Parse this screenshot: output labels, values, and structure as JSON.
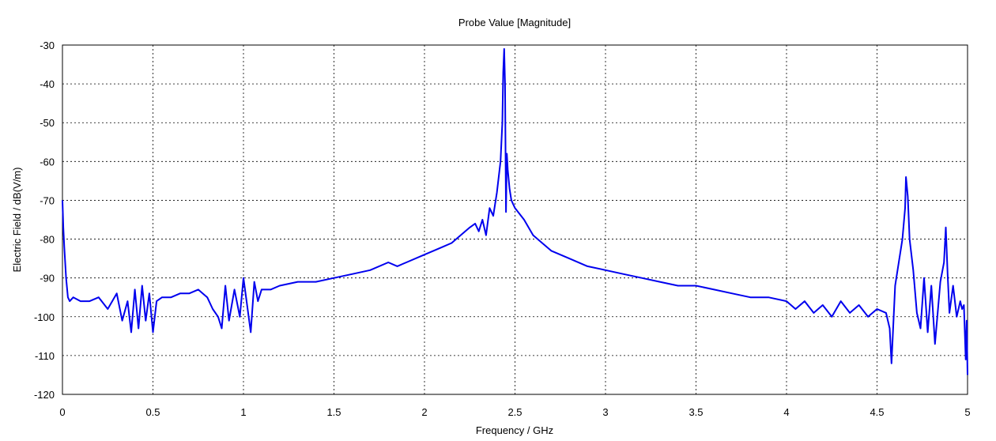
{
  "chart_data": {
    "type": "line",
    "title": "Probe Value [Magnitude]",
    "xlabel": "Frequency / GHz",
    "ylabel": "Electric Field / dB(V/m)",
    "xlim": [
      0,
      5
    ],
    "ylim": [
      -120,
      -30
    ],
    "xticks": [
      0,
      0.5,
      1,
      1.5,
      2,
      2.5,
      3,
      3.5,
      4,
      4.5,
      5
    ],
    "yticks": [
      -30,
      -40,
      -50,
      -60,
      -70,
      -80,
      -90,
      -100,
      -110,
      -120
    ],
    "grid": true,
    "legend": "none",
    "line_color": "#0000ee",
    "series": [
      {
        "x": [
          0,
          0.005,
          0.01,
          0.02,
          0.03,
          0.04,
          0.06,
          0.1,
          0.15,
          0.2,
          0.25,
          0.3,
          0.33,
          0.36,
          0.38,
          0.4,
          0.42,
          0.44,
          0.46,
          0.48,
          0.5,
          0.52,
          0.55,
          0.6,
          0.65,
          0.7,
          0.75,
          0.8,
          0.83,
          0.86,
          0.88,
          0.9,
          0.92,
          0.95,
          0.98,
          1.0,
          1.02,
          1.04,
          1.06,
          1.08,
          1.1,
          1.15,
          1.2,
          1.3,
          1.4,
          1.5,
          1.6,
          1.7,
          1.8,
          1.85,
          1.9,
          2.0,
          2.05,
          2.1,
          2.15,
          2.2,
          2.25,
          2.28,
          2.3,
          2.32,
          2.34,
          2.36,
          2.38,
          2.4,
          2.42,
          2.43,
          2.435,
          2.44,
          2.445,
          2.45,
          2.455,
          2.46,
          2.47,
          2.48,
          2.5,
          2.55,
          2.6,
          2.65,
          2.7,
          2.8,
          2.9,
          3.0,
          3.1,
          3.2,
          3.3,
          3.4,
          3.5,
          3.6,
          3.7,
          3.8,
          3.9,
          4.0,
          4.05,
          4.1,
          4.15,
          4.2,
          4.25,
          4.3,
          4.35,
          4.4,
          4.45,
          4.5,
          4.55,
          4.57,
          4.58,
          4.6,
          4.62,
          4.64,
          4.655,
          4.66,
          4.67,
          4.68,
          4.7,
          4.72,
          4.74,
          4.76,
          4.78,
          4.8,
          4.82,
          4.85,
          4.87,
          4.88,
          4.89,
          4.9,
          4.92,
          4.94,
          4.96,
          4.97,
          4.98,
          4.99,
          4.995,
          5.0
        ],
        "y": [
          -70,
          -77,
          -82,
          -90,
          -95,
          -96,
          -95,
          -96,
          -96,
          -95,
          -98,
          -94,
          -101,
          -96,
          -104,
          -93,
          -103,
          -92,
          -101,
          -94,
          -104,
          -96,
          -95,
          -95,
          -94,
          -94,
          -93,
          -95,
          -98,
          -100,
          -103,
          -92,
          -101,
          -93,
          -100,
          -90,
          -97,
          -104,
          -91,
          -96,
          -93,
          -93,
          -92,
          -91,
          -91,
          -90,
          -89,
          -88,
          -86,
          -87,
          -86,
          -84,
          -83,
          -82,
          -81,
          -79,
          -77,
          -76,
          -78,
          -75,
          -79,
          -72,
          -74,
          -68,
          -60,
          -50,
          -37,
          -31,
          -40,
          -73,
          -58,
          -62,
          -67,
          -70,
          -72,
          -75,
          -79,
          -81,
          -83,
          -85,
          -87,
          -88,
          -89,
          -90,
          -91,
          -92,
          -92,
          -93,
          -94,
          -95,
          -95,
          -96,
          -98,
          -96,
          -99,
          -97,
          -100,
          -96,
          -99,
          -97,
          -100,
          -98,
          -99,
          -103,
          -112,
          -92,
          -86,
          -80,
          -72,
          -64,
          -69,
          -80,
          -88,
          -99,
          -103,
          -90,
          -104,
          -92,
          -107,
          -91,
          -86,
          -77,
          -89,
          -99,
          -92,
          -100,
          -96,
          -98,
          -97,
          -111,
          -101,
          -115
        ]
      }
    ]
  }
}
